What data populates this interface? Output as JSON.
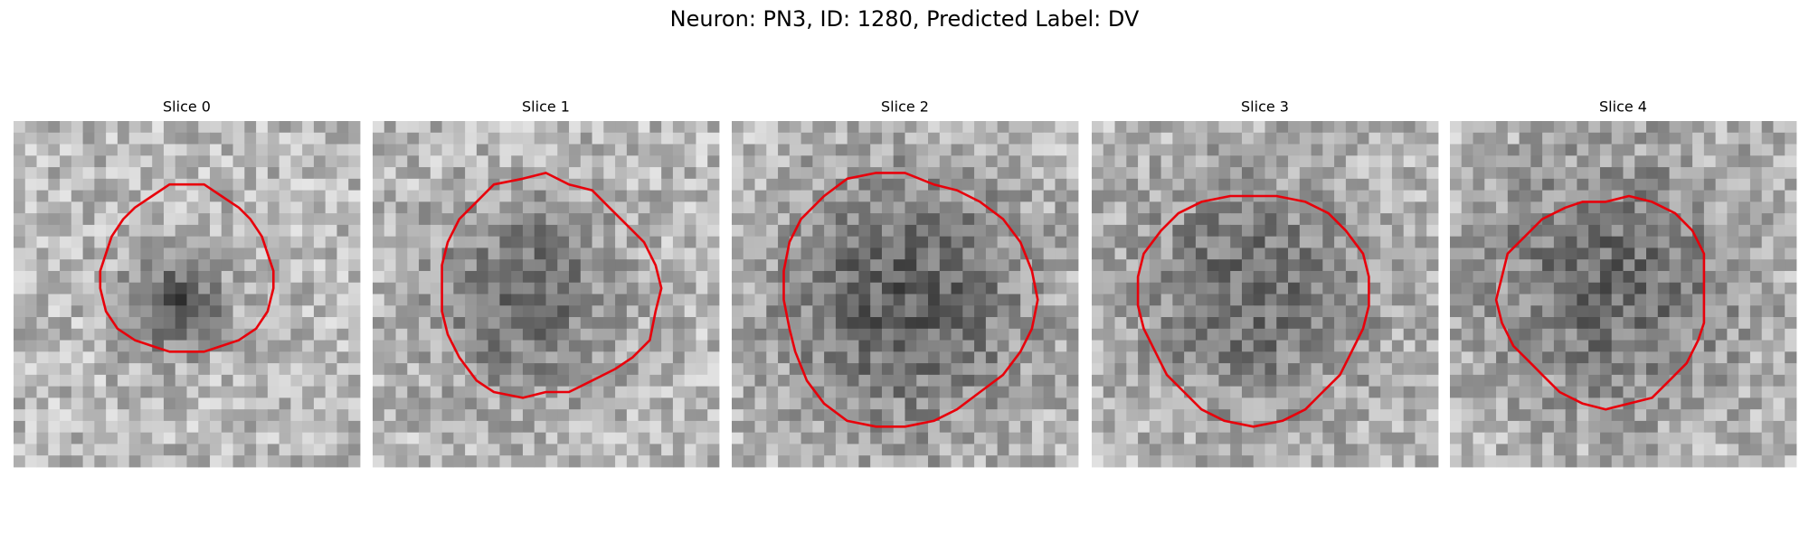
{
  "title": "Neuron: PN3, ID: 1280, Predicted Label: DV",
  "panels": [
    {
      "title": "Slice 0"
    },
    {
      "title": "Slice 1"
    },
    {
      "title": "Slice 2"
    },
    {
      "title": "Slice 3"
    },
    {
      "title": "Slice 4"
    }
  ]
}
